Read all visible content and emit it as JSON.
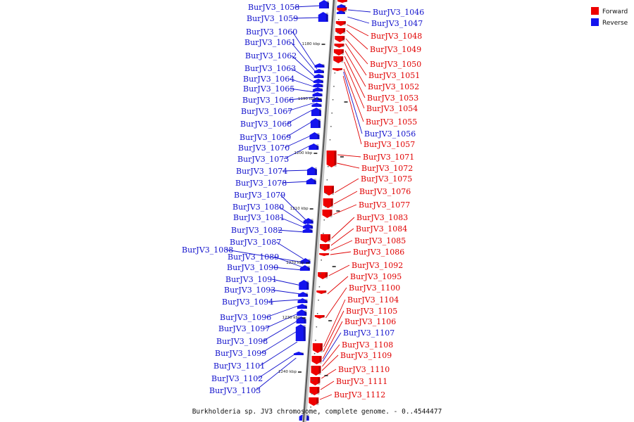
{
  "caption": "Burkholderia sp. JV3 chromosome, complete genome. - 0..4544477",
  "colors": {
    "forward": "#ee0000",
    "reverse": "#1414ee",
    "forward_label": "#e00000",
    "reverse_label": "#1111cc"
  },
  "legend": [
    {
      "label": "Forward",
      "color": "#ee0000"
    },
    {
      "label": "Reverse",
      "color": "#1414ee"
    }
  ],
  "ticks": [
    "1180 kbp",
    "1190 kbp",
    "1200 kbp",
    "1210 kbp",
    "1220 kbp",
    "1230 kbp",
    "1240 kbp"
  ],
  "reverse_genes": [
    "BurJV3_1058",
    "BurJV3_1059",
    "BurJV3_1060",
    "BurJV3_1061",
    "BurJV3_1062",
    "BurJV3_1063",
    "BurJV3_1064",
    "BurJV3_1065",
    "BurJV3_1066",
    "BurJV3_1067",
    "BurJV3_1068",
    "BurJV3_1069",
    "BurJV3_1070",
    "BurJV3_1073",
    "BurJV3_1074",
    "BurJV3_1078",
    "BurJV3_1079",
    "BurJV3_1080",
    "BurJV3_1081",
    "BurJV3_1082",
    "BurJV3_1087",
    "BurJV3_1088",
    "BurJV3_1089",
    "BurJV3_1090",
    "BurJV3_1091",
    "BurJV3_1093",
    "BurJV3_1094",
    "BurJV3_1096",
    "BurJV3_1097",
    "BurJV3_1098",
    "BurJV3_1099",
    "BurJV3_1101",
    "BurJV3_1102",
    "BurJV3_1103"
  ],
  "right_genes": [
    {
      "name": "BurJV3_1046",
      "strand": "reverse"
    },
    {
      "name": "BurJV3_1047",
      "strand": "reverse"
    },
    {
      "name": "BurJV3_1048",
      "strand": "forward"
    },
    {
      "name": "BurJV3_1049",
      "strand": "forward"
    },
    {
      "name": "BurJV3_1050",
      "strand": "forward"
    },
    {
      "name": "BurJV3_1051",
      "strand": "forward"
    },
    {
      "name": "BurJV3_1052",
      "strand": "forward"
    },
    {
      "name": "BurJV3_1053",
      "strand": "forward"
    },
    {
      "name": "BurJV3_1054",
      "strand": "forward"
    },
    {
      "name": "BurJV3_1055",
      "strand": "forward"
    },
    {
      "name": "BurJV3_1056",
      "strand": "reverse"
    },
    {
      "name": "BurJV3_1057",
      "strand": "forward"
    },
    {
      "name": "BurJV3_1071",
      "strand": "forward"
    },
    {
      "name": "BurJV3_1072",
      "strand": "forward"
    },
    {
      "name": "BurJV3_1075",
      "strand": "forward"
    },
    {
      "name": "BurJV3_1076",
      "strand": "forward"
    },
    {
      "name": "BurJV3_1077",
      "strand": "forward"
    },
    {
      "name": "BurJV3_1083",
      "strand": "forward"
    },
    {
      "name": "BurJV3_1084",
      "strand": "forward"
    },
    {
      "name": "BurJV3_1085",
      "strand": "forward"
    },
    {
      "name": "BurJV3_1086",
      "strand": "forward"
    },
    {
      "name": "BurJV3_1092",
      "strand": "forward"
    },
    {
      "name": "BurJV3_1095",
      "strand": "forward"
    },
    {
      "name": "BurJV3_1100",
      "strand": "forward"
    },
    {
      "name": "BurJV3_1104",
      "strand": "forward"
    },
    {
      "name": "BurJV3_1105",
      "strand": "forward"
    },
    {
      "name": "BurJV3_1106",
      "strand": "forward"
    },
    {
      "name": "BurJV3_1107",
      "strand": "reverse"
    },
    {
      "name": "BurJV3_1108",
      "strand": "forward"
    },
    {
      "name": "BurJV3_1109",
      "strand": "forward"
    },
    {
      "name": "BurJV3_1110",
      "strand": "forward"
    },
    {
      "name": "BurJV3_1111",
      "strand": "forward"
    },
    {
      "name": "BurJV3_1112",
      "strand": "forward"
    }
  ]
}
